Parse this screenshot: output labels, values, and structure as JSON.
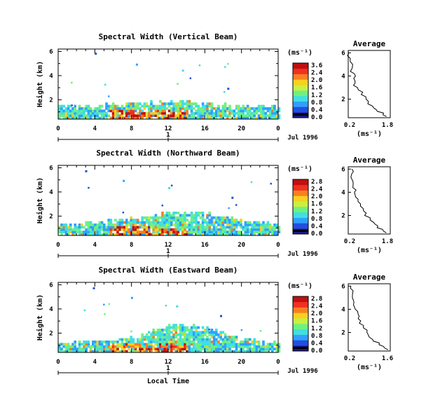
{
  "panels": [
    {
      "title": "Spectral Width (Vertical Beam)",
      "ylabel": "Height (km)",
      "y_ticks": [
        "6",
        "4",
        "2"
      ],
      "x_ticks": [
        "0",
        "4",
        "8",
        "12",
        "16",
        "20",
        "0"
      ],
      "day_marker": "1",
      "date_label": "Jul 1996",
      "colorbar": {
        "unit": "(ms⁻¹)",
        "ticks": [
          "3.6",
          "2.4",
          "2.0",
          "1.6",
          "1.2",
          "0.8",
          "0.4",
          "0.0"
        ]
      },
      "profile": {
        "title": "Average",
        "y_ticks": [
          "6",
          "4",
          "2"
        ],
        "x_ticks": [
          "0.2",
          "1.8"
        ],
        "xlabel": "(ms⁻¹)"
      }
    },
    {
      "title": "Spectral Width (Northward Beam)",
      "ylabel": "Height (km)",
      "y_ticks": [
        "6",
        "4",
        "2"
      ],
      "x_ticks": [
        "0",
        "4",
        "8",
        "12",
        "16",
        "20",
        "0"
      ],
      "day_marker": "1",
      "date_label": "Jul 1996",
      "colorbar": {
        "unit": "(ms⁻¹)",
        "ticks": [
          "2.8",
          "2.4",
          "2.0",
          "1.6",
          "1.2",
          "0.8",
          "0.4",
          "0.0"
        ]
      },
      "profile": {
        "title": "Average",
        "y_ticks": [
          "6",
          "4",
          "2"
        ],
        "x_ticks": [
          "0.2",
          "1.8"
        ],
        "xlabel": "(ms⁻¹)"
      }
    },
    {
      "title": "Spectral Width (Eastward Beam)",
      "ylabel": "Height (km)",
      "y_ticks": [
        "6",
        "4",
        "2"
      ],
      "x_ticks": [
        "0",
        "4",
        "8",
        "12",
        "16",
        "20",
        "0"
      ],
      "day_marker": "1",
      "date_label": "Jul 1996",
      "colorbar": {
        "unit": "(ms⁻¹)",
        "ticks": [
          "2.8",
          "2.4",
          "2.0",
          "1.6",
          "1.2",
          "0.8",
          "0.4",
          "0.0"
        ]
      },
      "profile": {
        "title": "Average",
        "y_ticks": [
          "6",
          "4",
          "2"
        ],
        "x_ticks": [
          "0.2",
          "1.6"
        ],
        "xlabel": "(ms⁻¹)"
      }
    }
  ],
  "xlabel": "Local Time",
  "colors": [
    "#1a1a8a",
    "#2050e0",
    "#30a0ff",
    "#40e0e0",
    "#70f080",
    "#c8f040",
    "#f8d020",
    "#f88020",
    "#f03020",
    "#c01010"
  ],
  "chart_data": [
    {
      "type": "heatmap",
      "title": "Spectral Width (Vertical Beam)",
      "xlabel": "",
      "ylabel": "Height (km)",
      "xlim": [
        0,
        24
      ],
      "ylim": [
        0.4,
        6.2
      ],
      "colorbar_range": [
        0.0,
        3.6
      ],
      "layer_top_km": [
        [
          0,
          1.4
        ],
        [
          4,
          1.5
        ],
        [
          8,
          1.6
        ],
        [
          12,
          1.8
        ],
        [
          16,
          1.6
        ],
        [
          20,
          1.4
        ],
        [
          24,
          1.4
        ]
      ],
      "peak_hours": [
        6,
        13
      ],
      "scattered_upper_points_km": [
        5.9,
        5.0,
        4.5,
        3.0
      ]
    },
    {
      "type": "heatmap",
      "title": "Spectral Width (Northward Beam)",
      "xlabel": "",
      "ylabel": "Height (km)",
      "xlim": [
        0,
        24
      ],
      "ylim": [
        0.4,
        6.2
      ],
      "colorbar_range": [
        0.0,
        2.8
      ],
      "layer_top_km": [
        [
          0,
          1.3
        ],
        [
          4,
          1.4
        ],
        [
          8,
          1.8
        ],
        [
          12,
          2.2
        ],
        [
          16,
          2.3
        ],
        [
          20,
          1.5
        ],
        [
          24,
          1.3
        ]
      ],
      "peak_hours": [
        6,
        13
      ],
      "scattered_upper_points_km": [
        5.8,
        5.0,
        4.4,
        3.6
      ]
    },
    {
      "type": "heatmap",
      "title": "Spectral Width (Eastward Beam)",
      "xlabel": "Local Time",
      "ylabel": "Height (km)",
      "xlim": [
        0,
        24
      ],
      "ylim": [
        0.4,
        6.2
      ],
      "colorbar_range": [
        0.0,
        2.8
      ],
      "layer_top_km": [
        [
          0,
          1.2
        ],
        [
          4,
          1.3
        ],
        [
          8,
          1.6
        ],
        [
          12,
          2.6
        ],
        [
          16,
          2.5
        ],
        [
          20,
          1.4
        ],
        [
          24,
          1.2
        ]
      ],
      "peak_hours": [
        6,
        13
      ],
      "scattered_upper_points_km": [
        5.8,
        5.0,
        4.3,
        3.5
      ]
    },
    {
      "type": "line",
      "title": "Average",
      "xlabel": "(ms⁻¹)",
      "xlim": [
        0.2,
        1.8
      ],
      "ylim": [
        0.4,
        6.2
      ],
      "x": [
        0.28,
        0.3,
        0.32,
        0.35,
        0.38,
        0.42,
        0.5,
        0.6,
        0.7,
        0.85,
        1.0,
        1.15,
        1.3,
        1.5,
        1.7
      ],
      "y": [
        6.0,
        5.5,
        5.0,
        4.6,
        4.2,
        3.8,
        3.4,
        3.0,
        2.6,
        2.2,
        1.8,
        1.4,
        1.1,
        0.8,
        0.5
      ]
    },
    {
      "type": "line",
      "title": "Average",
      "xlabel": "(ms⁻¹)",
      "xlim": [
        0.2,
        1.8
      ],
      "ylim": [
        0.4,
        6.2
      ],
      "x": [
        0.3,
        0.35,
        0.38,
        0.4,
        0.45,
        0.5,
        0.55,
        0.65,
        0.75,
        0.85,
        1.0,
        1.15,
        1.3,
        1.5,
        1.7
      ],
      "y": [
        6.0,
        5.6,
        5.0,
        4.6,
        4.2,
        3.8,
        3.4,
        3.0,
        2.6,
        2.2,
        1.8,
        1.4,
        1.1,
        0.8,
        0.5
      ]
    },
    {
      "type": "line",
      "title": "Average",
      "xlabel": "(ms⁻¹)",
      "xlim": [
        0.2,
        1.6
      ],
      "ylim": [
        0.4,
        6.2
      ],
      "x": [
        0.3,
        0.32,
        0.35,
        0.4,
        0.45,
        0.5,
        0.55,
        0.62,
        0.7,
        0.8,
        0.9,
        1.05,
        1.2,
        1.35,
        1.5
      ],
      "y": [
        6.0,
        5.6,
        5.0,
        4.6,
        4.2,
        3.8,
        3.4,
        3.0,
        2.6,
        2.2,
        1.8,
        1.4,
        1.1,
        0.8,
        0.5
      ]
    }
  ]
}
